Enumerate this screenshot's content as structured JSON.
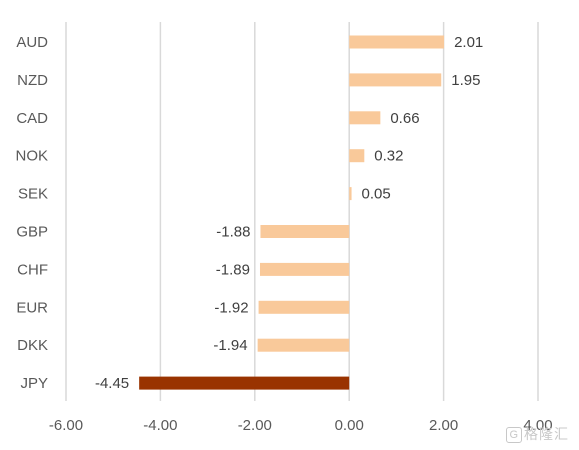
{
  "chart_data": {
    "type": "bar",
    "orientation": "horizontal",
    "categories": [
      "AUD",
      "NZD",
      "CAD",
      "NOK",
      "SEK",
      "GBP",
      "CHF",
      "EUR",
      "DKK",
      "JPY"
    ],
    "values": [
      2.01,
      1.95,
      0.66,
      0.32,
      0.05,
      -1.88,
      -1.89,
      -1.92,
      -1.94,
      -4.45
    ],
    "value_labels": [
      "2.01",
      "1.95",
      "0.66",
      "0.32",
      "0.05",
      "-1.88",
      "-1.89",
      "-1.92",
      "-1.94",
      "-4.45"
    ],
    "xlim": [
      -6,
      4
    ],
    "xticks": [
      -6,
      -4,
      -2,
      0,
      2,
      4
    ],
    "xtick_labels": [
      "-6.00",
      "-4.00",
      "-2.00",
      "0.00",
      "2.00",
      "4.00"
    ],
    "grid": true,
    "legend": "none",
    "colors": {
      "default_bar": "#f9c99a",
      "highlight_bar": "#993300",
      "grid": "#d9d9d9"
    },
    "highlight_category": "JPY"
  },
  "watermark": {
    "icon": "G",
    "text": "格隆汇"
  }
}
